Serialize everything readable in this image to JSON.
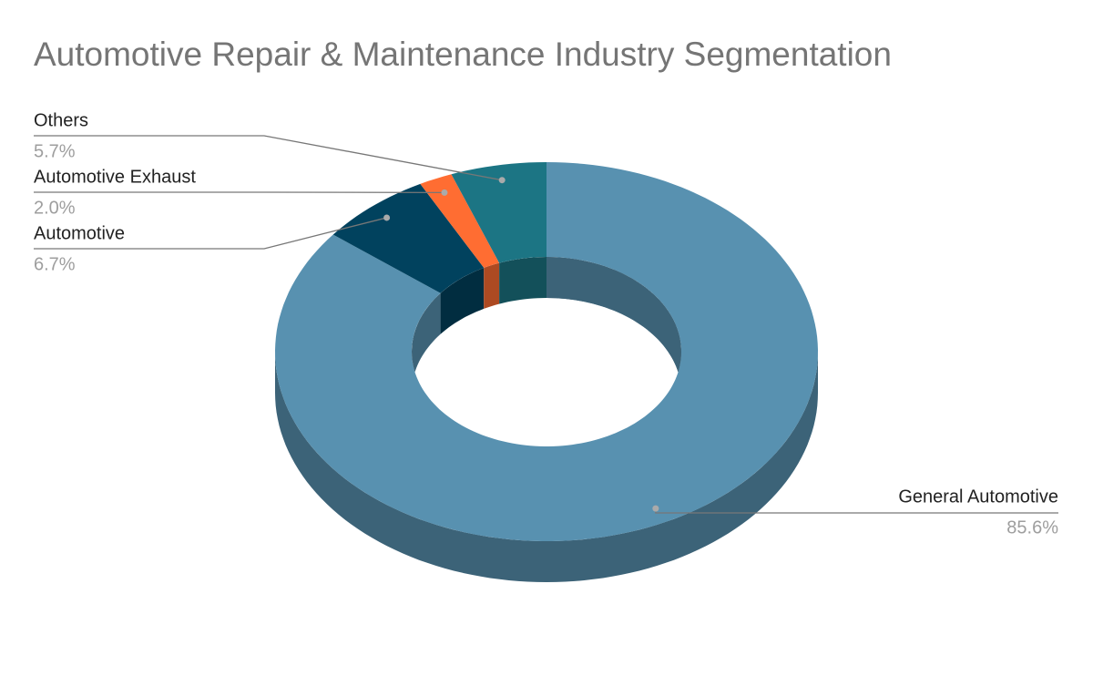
{
  "chart_data": {
    "type": "donut3d",
    "title": "Automotive Repair & Maintenance Industry Segmentation",
    "categories": [
      "General Automotive",
      "Automotive",
      "Automotive Exhaust",
      "Others"
    ],
    "values": [
      85.6,
      6.7,
      2.0,
      5.7
    ],
    "value_labels": [
      "85.6%",
      "6.7%",
      "2.0%",
      "5.7%"
    ],
    "colors": [
      "#5891b0",
      "#01425e",
      "#ff6d32",
      "#1c7584"
    ]
  }
}
